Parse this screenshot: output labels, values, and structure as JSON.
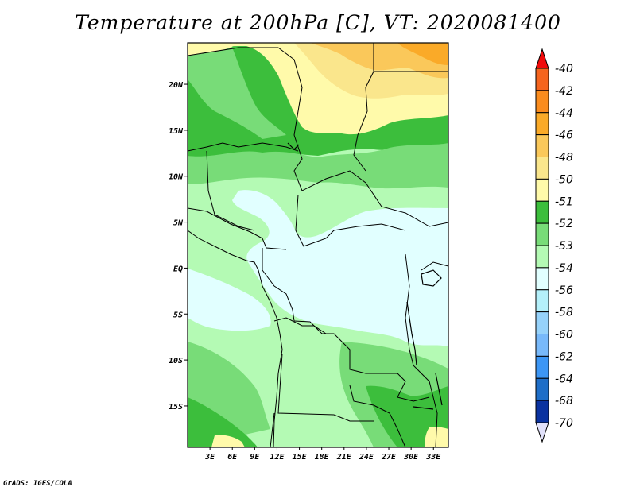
{
  "title": "Temperature at 200hPa [C], VT: 2020081400",
  "credit": "GrADS: IGES/COLA",
  "map": {
    "lon_range": [
      0,
      35
    ],
    "lat_range": [
      -19.5,
      24.5
    ],
    "lon_ticks": [
      {
        "v": 3,
        "label": "3E"
      },
      {
        "v": 6,
        "label": "6E"
      },
      {
        "v": 9,
        "label": "9E"
      },
      {
        "v": 12,
        "label": "12E"
      },
      {
        "v": 15,
        "label": "15E"
      },
      {
        "v": 18,
        "label": "18E"
      },
      {
        "v": 21,
        "label": "21E"
      },
      {
        "v": 24,
        "label": "24E"
      },
      {
        "v": 27,
        "label": "27E"
      },
      {
        "v": 30,
        "label": "30E"
      },
      {
        "v": 33,
        "label": "33E"
      }
    ],
    "lat_ticks": [
      {
        "v": 20,
        "label": "20N"
      },
      {
        "v": 15,
        "label": "15N"
      },
      {
        "v": 10,
        "label": "10N"
      },
      {
        "v": 5,
        "label": "5N"
      },
      {
        "v": 0,
        "label": "EQ"
      },
      {
        "v": -5,
        "label": "5S"
      },
      {
        "v": -10,
        "label": "10S"
      },
      {
        "v": -15,
        "label": "15S"
      }
    ]
  },
  "colorbar": {
    "levels": [
      {
        "label": "-40",
        "color": "#f03c1e"
      },
      {
        "label": "-42",
        "color": "#f5641e"
      },
      {
        "label": "-44",
        "color": "#fa8c1e"
      },
      {
        "label": "-46",
        "color": "#faaa28"
      },
      {
        "label": "-48",
        "color": "#fac85a"
      },
      {
        "label": "-50",
        "color": "#fae68c"
      },
      {
        "label": "-51",
        "color": "#fffaaa"
      },
      {
        "label": "-52",
        "color": "#3cbe3c"
      },
      {
        "label": "-53",
        "color": "#78dc78"
      },
      {
        "label": "-54",
        "color": "#b4fab4"
      },
      {
        "label": "-56",
        "color": "#e1ffff"
      },
      {
        "label": "-58",
        "color": "#b4f0fa"
      },
      {
        "label": "-60",
        "color": "#96d2fa"
      },
      {
        "label": "-62",
        "color": "#78b9fa"
      },
      {
        "label": "-64",
        "color": "#3c96f5"
      },
      {
        "label": "-68",
        "color": "#1e6ec8"
      },
      {
        "label": "-70",
        "color": "#0a32a0"
      }
    ],
    "top_triangle_color": "#f00a0a",
    "bottom_triangle_color": "#e1e1fa",
    "bottom_cell_color": "#00007a"
  }
}
